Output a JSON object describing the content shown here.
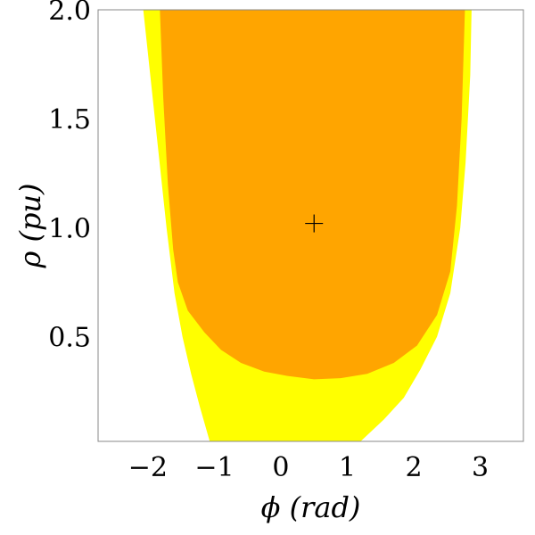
{
  "chart_data": {
    "type": "area",
    "xlabel": "ϕ (rad)",
    "ylabel": "ρ (pu)",
    "xlim": [
      -2.75,
      3.65
    ],
    "ylim": [
      0.02,
      2.0
    ],
    "x_ticks": [
      "−2",
      "−1",
      "0",
      "1",
      "2",
      "3"
    ],
    "x_tick_values": [
      -2,
      -1,
      0,
      1,
      2,
      3
    ],
    "y_ticks": [
      "0.5",
      "1.0",
      "1.5",
      "2.0"
    ],
    "y_tick_values": [
      0.5,
      1.0,
      1.5,
      2.0
    ],
    "grid": false,
    "regions": [
      {
        "color": "#ffff00",
        "boundary": [
          [
            -2.07,
            2.0
          ],
          [
            -2.0,
            1.8
          ],
          [
            -1.86,
            1.4
          ],
          [
            -1.72,
            1.0
          ],
          [
            -1.6,
            0.7
          ],
          [
            -1.48,
            0.5
          ],
          [
            -1.35,
            0.33
          ],
          [
            -1.22,
            0.18
          ],
          [
            -1.07,
            0.02
          ],
          [
            1.2,
            0.02
          ],
          [
            1.55,
            0.12
          ],
          [
            1.85,
            0.22
          ],
          [
            2.1,
            0.35
          ],
          [
            2.35,
            0.5
          ],
          [
            2.55,
            0.7
          ],
          [
            2.7,
            1.0
          ],
          [
            2.78,
            1.3
          ],
          [
            2.85,
            1.7
          ],
          [
            2.87,
            2.0
          ]
        ]
      },
      {
        "color": "#ffa500",
        "boundary": [
          [
            -1.82,
            2.0
          ],
          [
            -1.77,
            1.6
          ],
          [
            -1.7,
            1.2
          ],
          [
            -1.62,
            0.9
          ],
          [
            -1.55,
            0.75
          ],
          [
            -1.4,
            0.62
          ],
          [
            -1.15,
            0.52
          ],
          [
            -0.9,
            0.44
          ],
          [
            -0.6,
            0.38
          ],
          [
            -0.25,
            0.34
          ],
          [
            0.1,
            0.32
          ],
          [
            0.5,
            0.305
          ],
          [
            0.9,
            0.31
          ],
          [
            1.3,
            0.33
          ],
          [
            1.7,
            0.38
          ],
          [
            2.05,
            0.46
          ],
          [
            2.35,
            0.6
          ],
          [
            2.55,
            0.8
          ],
          [
            2.65,
            1.1
          ],
          [
            2.72,
            1.5
          ],
          [
            2.75,
            1.8
          ],
          [
            2.77,
            2.0
          ]
        ]
      }
    ],
    "marker": {
      "x": 0.5,
      "y": 1.02,
      "symbol": "+"
    }
  }
}
